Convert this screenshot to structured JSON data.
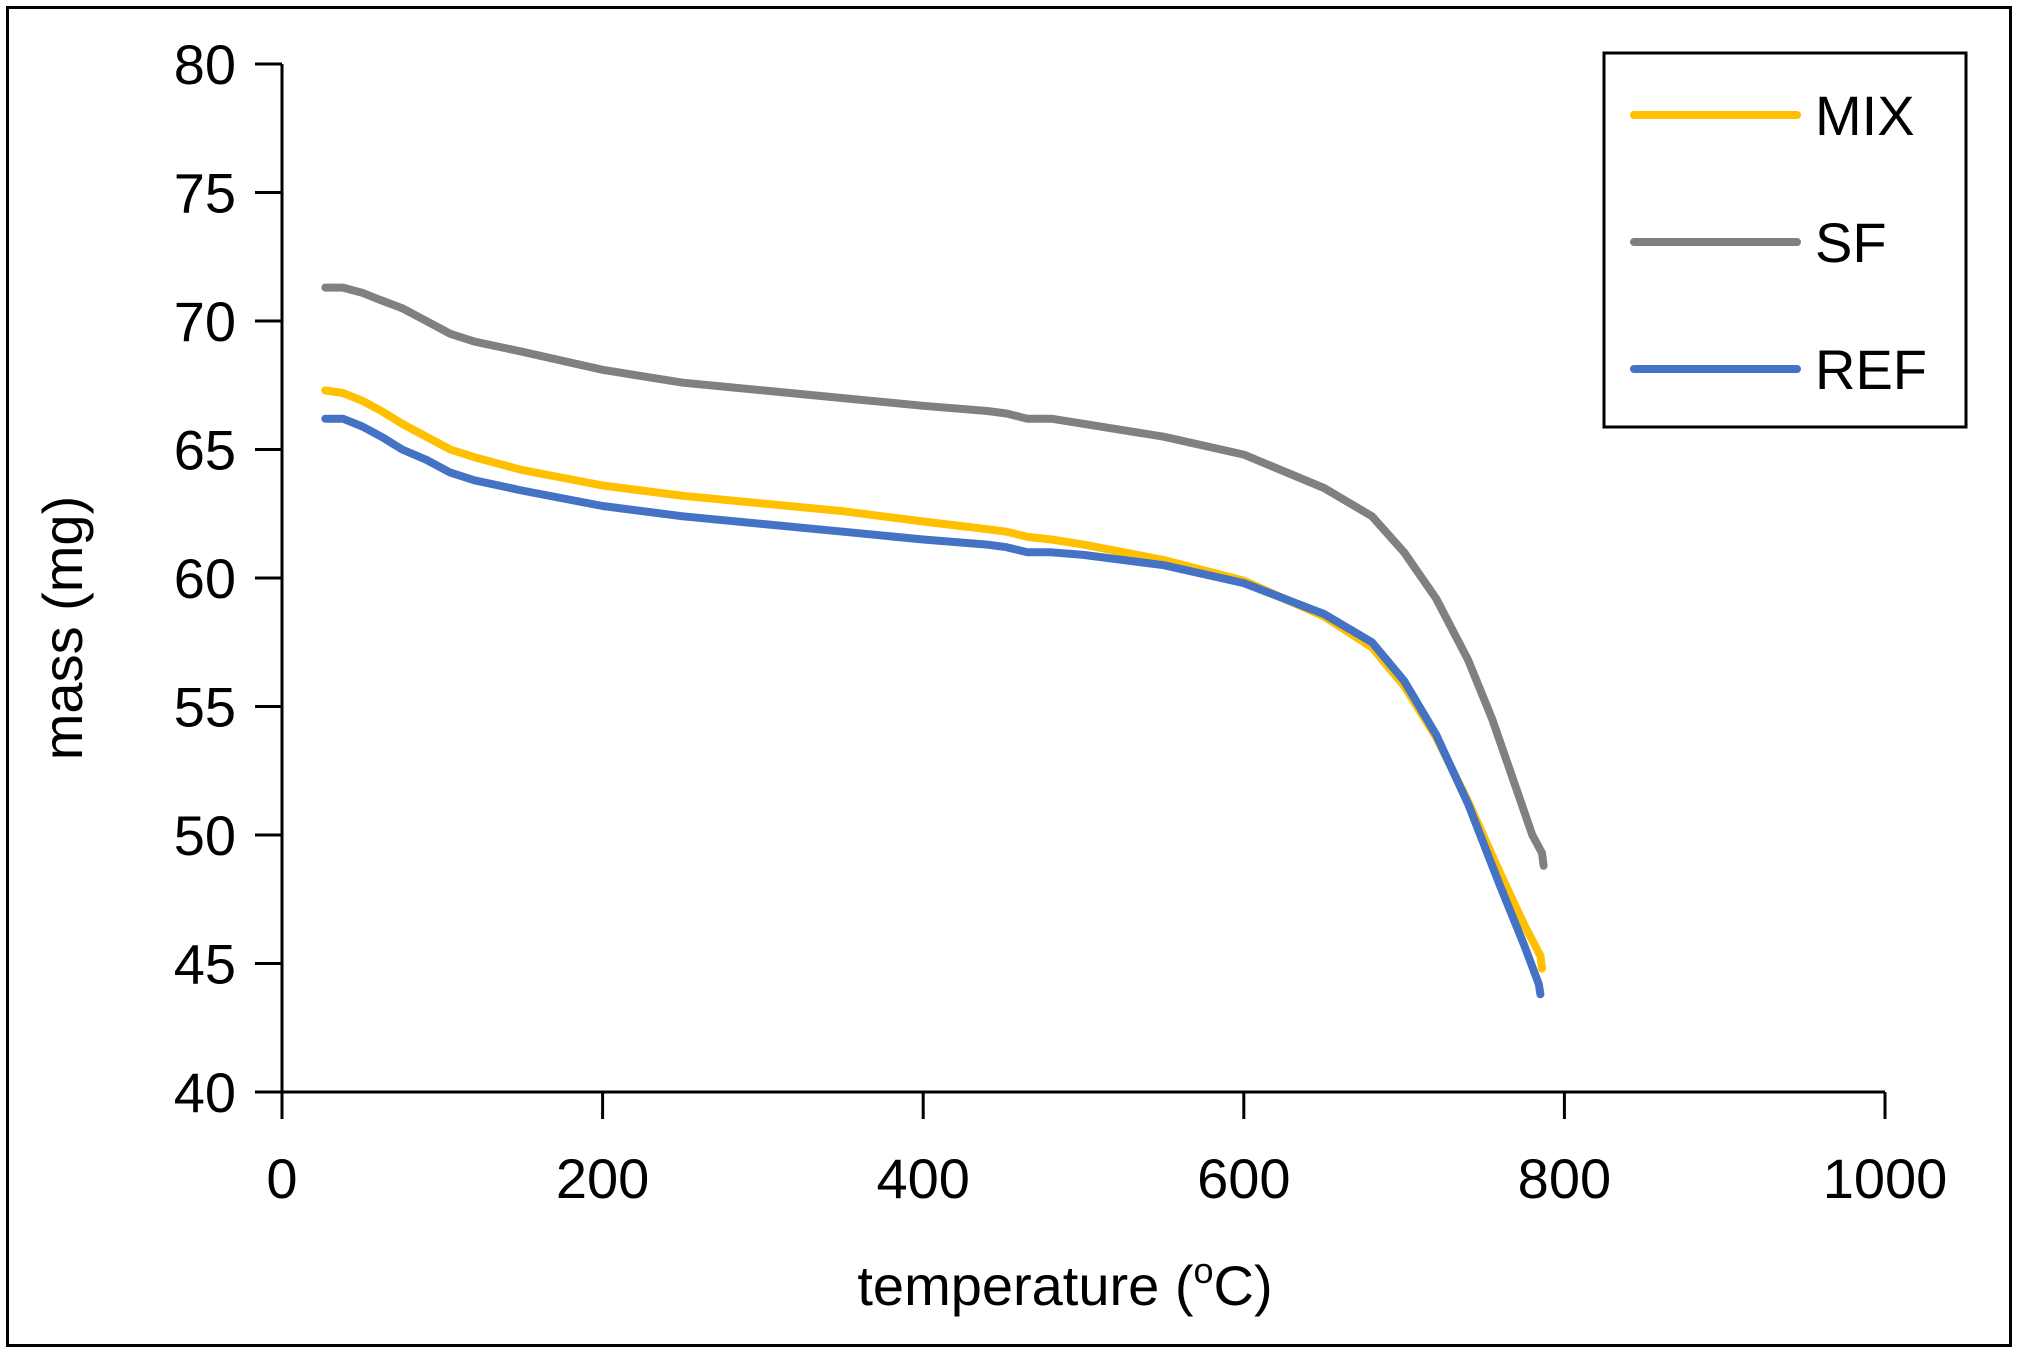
{
  "chart_data": {
    "type": "line",
    "title": "",
    "xlabel": "temperature (",
    "xlabel_sup": "o",
    "xlabel_unit": "C)",
    "ylabel": "mass (mg)",
    "xlim": [
      0,
      1000
    ],
    "ylim": [
      40,
      80
    ],
    "xticks": [
      0,
      200,
      400,
      600,
      800,
      1000
    ],
    "yticks": [
      40,
      45,
      50,
      55,
      60,
      65,
      70,
      75,
      80
    ],
    "grid": false,
    "legend_position": "top-right",
    "series": [
      {
        "name": "MIX",
        "color": "#FFC000",
        "x": [
          27,
          38,
          50,
          62,
          75,
          90,
          105,
          120,
          150,
          200,
          250,
          300,
          350,
          400,
          440,
          452,
          465,
          480,
          500,
          550,
          600,
          650,
          680,
          700,
          720,
          740,
          760,
          775,
          785,
          786
        ],
        "y": [
          67.3,
          67.2,
          66.9,
          66.5,
          66.0,
          65.5,
          65.0,
          64.7,
          64.2,
          63.6,
          63.2,
          62.9,
          62.6,
          62.2,
          61.9,
          61.8,
          61.6,
          61.5,
          61.3,
          60.7,
          59.9,
          58.5,
          57.3,
          55.8,
          53.8,
          51.3,
          48.5,
          46.5,
          45.3,
          44.8
        ]
      },
      {
        "name": "SF",
        "color": "#808080",
        "x": [
          27,
          38,
          50,
          62,
          75,
          90,
          105,
          120,
          150,
          200,
          250,
          300,
          350,
          400,
          440,
          452,
          465,
          480,
          500,
          550,
          600,
          650,
          680,
          700,
          720,
          740,
          755,
          770,
          780,
          786,
          787
        ],
        "y": [
          71.3,
          71.3,
          71.1,
          70.8,
          70.5,
          70.0,
          69.5,
          69.2,
          68.8,
          68.1,
          67.6,
          67.3,
          67.0,
          66.7,
          66.5,
          66.4,
          66.2,
          66.2,
          66.0,
          65.5,
          64.8,
          63.5,
          62.4,
          61.0,
          59.2,
          56.8,
          54.5,
          51.8,
          50.0,
          49.3,
          48.8
        ]
      },
      {
        "name": "REF",
        "color": "#4472C4",
        "x": [
          27,
          38,
          50,
          62,
          75,
          90,
          105,
          120,
          150,
          200,
          250,
          300,
          350,
          400,
          440,
          452,
          465,
          480,
          500,
          550,
          600,
          650,
          680,
          700,
          720,
          740,
          760,
          775,
          784,
          785
        ],
        "y": [
          66.2,
          66.2,
          65.9,
          65.5,
          65.0,
          64.6,
          64.1,
          63.8,
          63.4,
          62.8,
          62.4,
          62.1,
          61.8,
          61.5,
          61.3,
          61.2,
          61.0,
          61.0,
          60.9,
          60.5,
          59.8,
          58.6,
          57.5,
          56.0,
          53.9,
          51.2,
          48.0,
          45.7,
          44.2,
          43.8
        ]
      }
    ]
  }
}
